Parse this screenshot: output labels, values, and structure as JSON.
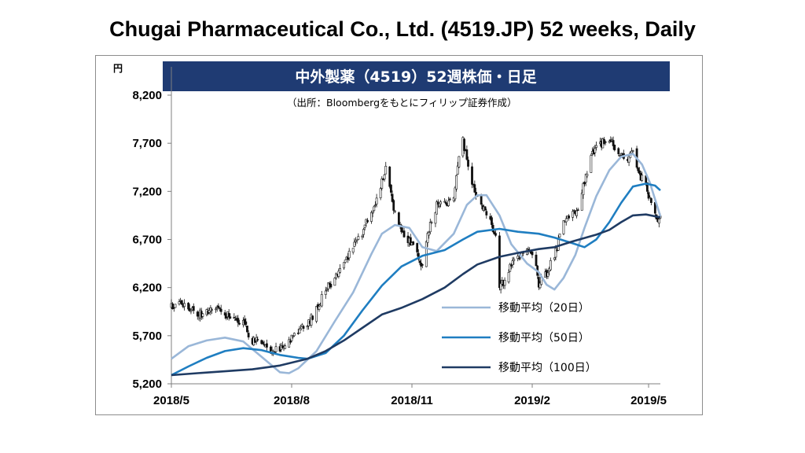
{
  "page": {
    "title": "Chugai Pharmaceutical Co., Ltd. (4519.JP) 52 weeks, Daily"
  },
  "chart_data": {
    "type": "candlestick",
    "banner_title": "中外製薬（4519）52週株価・日足",
    "source_note": "（出所：Bloombergをもとにフィリップ証券作成）",
    "y_unit_label": "円",
    "ylim": [
      5200,
      8200
    ],
    "yticks": [
      5200,
      5700,
      6200,
      6700,
      7200,
      7700,
      8200
    ],
    "ytick_labels": [
      "5,200",
      "5,700",
      "6,200",
      "6,700",
      "7,200",
      "7,700",
      "8,200"
    ],
    "xlim": [
      "2018-05-01",
      "2019-05-10"
    ],
    "xticks": [
      "2018-05-01",
      "2018-08-01",
      "2018-11-01",
      "2019-02-01",
      "2019-05-01"
    ],
    "xtick_labels": [
      "2018/5",
      "2018/8",
      "2018/11",
      "2019/2",
      "2019/5"
    ],
    "grid": false,
    "legend_position": "lower-right",
    "colors": {
      "banner_bg": "#1f3b73",
      "candle": "#111111",
      "ma20": "#9ab7d8",
      "ma50": "#1f7ec1",
      "ma100": "#1f3b63",
      "axis": "#7f7f7f"
    },
    "price_path": [
      [
        "2018-05-01",
        6000
      ],
      [
        "2018-05-07",
        6050
      ],
      [
        "2018-05-14",
        5980
      ],
      [
        "2018-05-21",
        5920
      ],
      [
        "2018-05-28",
        5960
      ],
      [
        "2018-06-04",
        5980
      ],
      [
        "2018-06-11",
        5920
      ],
      [
        "2018-06-18",
        5900
      ],
      [
        "2018-06-25",
        5820
      ],
      [
        "2018-07-02",
        5650
      ],
      [
        "2018-07-09",
        5620
      ],
      [
        "2018-07-16",
        5560
      ],
      [
        "2018-07-23",
        5560
      ],
      [
        "2018-07-30",
        5640
      ],
      [
        "2018-08-06",
        5740
      ],
      [
        "2018-08-13",
        5820
      ],
      [
        "2018-08-20",
        5980
      ],
      [
        "2018-08-27",
        6180
      ],
      [
        "2018-09-03",
        6300
      ],
      [
        "2018-09-10",
        6430
      ],
      [
        "2018-09-17",
        6620
      ],
      [
        "2018-09-24",
        6780
      ],
      [
        "2018-10-01",
        6980
      ],
      [
        "2018-10-05",
        7100
      ],
      [
        "2018-10-09",
        7320
      ],
      [
        "2018-10-12",
        7430
      ],
      [
        "2018-10-16",
        7150
      ],
      [
        "2018-10-19",
        6980
      ],
      [
        "2018-10-24",
        6800
      ],
      [
        "2018-10-30",
        6680
      ],
      [
        "2018-11-05",
        6580
      ],
      [
        "2018-11-09",
        6420
      ],
      [
        "2018-11-14",
        6820
      ],
      [
        "2018-11-20",
        7050
      ],
      [
        "2018-11-26",
        7060
      ],
      [
        "2018-12-03",
        7160
      ],
      [
        "2018-12-06",
        7500
      ],
      [
        "2018-12-10",
        7720
      ],
      [
        "2018-12-13",
        7520
      ],
      [
        "2018-12-18",
        7260
      ],
      [
        "2018-12-21",
        7120
      ],
      [
        "2018-12-25",
        7020
      ],
      [
        "2018-12-28",
        6980
      ],
      [
        "2019-01-04",
        6760
      ],
      [
        "2019-01-07",
        6220
      ],
      [
        "2019-01-11",
        6280
      ],
      [
        "2019-01-16",
        6450
      ],
      [
        "2019-01-21",
        6520
      ],
      [
        "2019-01-28",
        6600
      ],
      [
        "2019-02-04",
        6420
      ],
      [
        "2019-02-06",
        6240
      ],
      [
        "2019-02-12",
        6360
      ],
      [
        "2019-02-18",
        6520
      ],
      [
        "2019-02-25",
        6860
      ],
      [
        "2019-03-04",
        6970
      ],
      [
        "2019-03-08",
        7010
      ],
      [
        "2019-03-13",
        7300
      ],
      [
        "2019-03-18",
        7560
      ],
      [
        "2019-03-22",
        7640
      ],
      [
        "2019-03-27",
        7720
      ],
      [
        "2019-04-01",
        7750
      ],
      [
        "2019-04-05",
        7650
      ],
      [
        "2019-04-10",
        7560
      ],
      [
        "2019-04-15",
        7500
      ],
      [
        "2019-04-19",
        7620
      ],
      [
        "2019-04-24",
        7350
      ],
      [
        "2019-04-29",
        7300
      ],
      [
        "2019-05-02",
        7100
      ],
      [
        "2019-05-06",
        6950
      ],
      [
        "2019-05-08",
        6880
      ],
      [
        "2019-05-10",
        6950
      ]
    ],
    "series": [
      {
        "name": "移動平均（20日）",
        "points": [
          [
            "2018-05-01",
            5460
          ],
          [
            "2018-05-14",
            5590
          ],
          [
            "2018-05-28",
            5650
          ],
          [
            "2018-06-11",
            5680
          ],
          [
            "2018-06-25",
            5640
          ],
          [
            "2018-07-09",
            5480
          ],
          [
            "2018-07-23",
            5320
          ],
          [
            "2018-07-30",
            5310
          ],
          [
            "2018-08-06",
            5360
          ],
          [
            "2018-08-20",
            5540
          ],
          [
            "2018-09-03",
            5850
          ],
          [
            "2018-09-17",
            6150
          ],
          [
            "2018-10-01",
            6550
          ],
          [
            "2018-10-09",
            6760
          ],
          [
            "2018-10-19",
            6850
          ],
          [
            "2018-10-30",
            6820
          ],
          [
            "2018-11-09",
            6620
          ],
          [
            "2018-11-20",
            6580
          ],
          [
            "2018-12-03",
            6760
          ],
          [
            "2018-12-13",
            7060
          ],
          [
            "2018-12-21",
            7160
          ],
          [
            "2018-12-28",
            7160
          ],
          [
            "2019-01-07",
            6950
          ],
          [
            "2019-01-16",
            6650
          ],
          [
            "2019-01-28",
            6450
          ],
          [
            "2019-02-06",
            6360
          ],
          [
            "2019-02-12",
            6230
          ],
          [
            "2019-02-18",
            6180
          ],
          [
            "2019-02-25",
            6300
          ],
          [
            "2019-03-06",
            6540
          ],
          [
            "2019-03-13",
            6820
          ],
          [
            "2019-03-22",
            7150
          ],
          [
            "2019-04-01",
            7420
          ],
          [
            "2019-04-10",
            7560
          ],
          [
            "2019-04-19",
            7590
          ],
          [
            "2019-04-26",
            7480
          ],
          [
            "2019-05-02",
            7290
          ],
          [
            "2019-05-10",
            6940
          ]
        ]
      },
      {
        "name": "移動平均（50日）",
        "points": [
          [
            "2018-05-01",
            5290
          ],
          [
            "2018-05-14",
            5380
          ],
          [
            "2018-05-28",
            5470
          ],
          [
            "2018-06-11",
            5540
          ],
          [
            "2018-06-25",
            5570
          ],
          [
            "2018-07-09",
            5550
          ],
          [
            "2018-07-23",
            5500
          ],
          [
            "2018-08-06",
            5470
          ],
          [
            "2018-08-13",
            5460
          ],
          [
            "2018-08-27",
            5520
          ],
          [
            "2018-09-10",
            5700
          ],
          [
            "2018-09-24",
            5960
          ],
          [
            "2018-10-09",
            6220
          ],
          [
            "2018-10-24",
            6420
          ],
          [
            "2018-11-09",
            6530
          ],
          [
            "2018-11-26",
            6590
          ],
          [
            "2018-12-10",
            6700
          ],
          [
            "2018-12-21",
            6780
          ],
          [
            "2019-01-07",
            6810
          ],
          [
            "2019-01-21",
            6780
          ],
          [
            "2019-02-06",
            6760
          ],
          [
            "2019-02-18",
            6720
          ],
          [
            "2019-03-04",
            6660
          ],
          [
            "2019-03-13",
            6620
          ],
          [
            "2019-03-22",
            6700
          ],
          [
            "2019-04-01",
            6880
          ],
          [
            "2019-04-10",
            7080
          ],
          [
            "2019-04-19",
            7250
          ],
          [
            "2019-04-29",
            7280
          ],
          [
            "2019-05-06",
            7260
          ],
          [
            "2019-05-10",
            7210
          ]
        ]
      },
      {
        "name": "移動平均（100日）",
        "points": [
          [
            "2018-05-01",
            5290
          ],
          [
            "2018-05-21",
            5310
          ],
          [
            "2018-06-11",
            5330
          ],
          [
            "2018-07-02",
            5350
          ],
          [
            "2018-07-23",
            5390
          ],
          [
            "2018-08-13",
            5460
          ],
          [
            "2018-08-27",
            5540
          ],
          [
            "2018-09-10",
            5650
          ],
          [
            "2018-09-24",
            5780
          ],
          [
            "2018-10-09",
            5920
          ],
          [
            "2018-10-24",
            5990
          ],
          [
            "2018-11-09",
            6080
          ],
          [
            "2018-11-26",
            6200
          ],
          [
            "2018-12-10",
            6340
          ],
          [
            "2018-12-21",
            6440
          ],
          [
            "2019-01-07",
            6520
          ],
          [
            "2019-01-21",
            6560
          ],
          [
            "2019-02-06",
            6600
          ],
          [
            "2019-02-18",
            6620
          ],
          [
            "2019-03-04",
            6680
          ],
          [
            "2019-03-22",
            6750
          ],
          [
            "2019-04-01",
            6800
          ],
          [
            "2019-04-10",
            6880
          ],
          [
            "2019-04-19",
            6950
          ],
          [
            "2019-04-29",
            6960
          ],
          [
            "2019-05-10",
            6930
          ]
        ]
      }
    ]
  }
}
